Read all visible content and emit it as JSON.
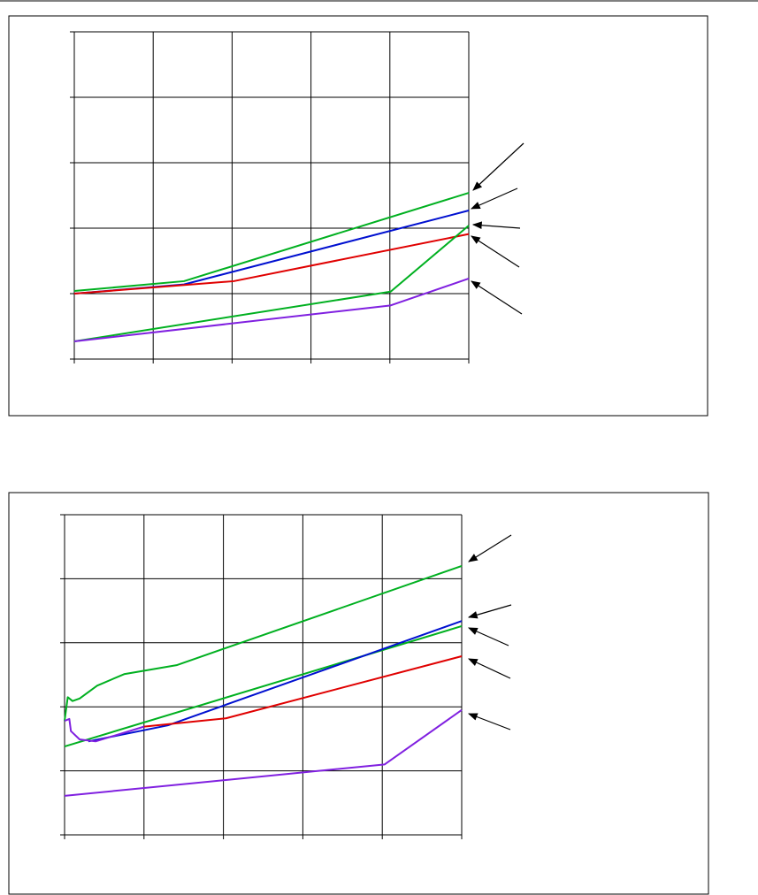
{
  "chart_data": [
    {
      "type": "line",
      "xlim": [
        0,
        5
      ],
      "ylim": [
        0,
        5
      ],
      "xticks": [
        0,
        1,
        2,
        3,
        4,
        5
      ],
      "yticks": [
        0,
        1,
        2,
        3,
        4,
        5
      ],
      "grid": true,
      "series": [
        {
          "color": "#00b020",
          "x": [
            0,
            1.39,
            5
          ],
          "values": [
            1.04,
            1.19,
            2.54
          ]
        },
        {
          "color": "#0010d0",
          "x": [
            0,
            1.39,
            5
          ],
          "values": [
            1.0,
            1.14,
            2.27
          ]
        },
        {
          "color": "#e00000",
          "x": [
            0,
            2.02,
            5
          ],
          "values": [
            1.0,
            1.19,
            1.91
          ]
        },
        {
          "color": "#00b020",
          "x": [
            0,
            4.01,
            5
          ],
          "values": [
            0.27,
            1.03,
            2.04
          ]
        },
        {
          "color": "#8020e0",
          "x": [
            0,
            4.01,
            5
          ],
          "values": [
            0.27,
            0.82,
            1.23
          ]
        }
      ]
    },
    {
      "type": "line",
      "xlim": [
        0,
        5
      ],
      "ylim": [
        0,
        5
      ],
      "xticks": [
        0,
        1,
        2,
        3,
        4,
        5
      ],
      "yticks": [
        0,
        1,
        2,
        3,
        4,
        5
      ],
      "grid": true,
      "series": [
        {
          "color": "#00b020",
          "x": [
            0,
            0.04,
            0.1,
            0.19,
            0.41,
            0.75,
            1.41,
            5
          ],
          "values": [
            1.78,
            2.15,
            2.09,
            2.13,
            2.33,
            2.51,
            2.65,
            4.2
          ]
        },
        {
          "color": "#00b020",
          "x": [
            0,
            5
          ],
          "values": [
            1.38,
            3.26
          ]
        },
        {
          "color": "#0010d0",
          "x": [
            0.3,
            1.3,
            5
          ],
          "values": [
            1.46,
            1.71,
            3.34
          ]
        },
        {
          "color": "#e00000",
          "x": [
            1.0,
            2.03,
            5
          ],
          "values": [
            1.69,
            1.82,
            2.79
          ]
        },
        {
          "color": "#8020e0",
          "x": [
            0,
            0.06,
            0.08,
            0.19,
            0.39,
            1.0
          ],
          "values": [
            1.78,
            1.81,
            1.62,
            1.49,
            1.46,
            1.69
          ]
        },
        {
          "color": "#8020e0",
          "x": [
            0,
            4.03,
            5
          ],
          "values": [
            0.61,
            1.1,
            1.95
          ]
        }
      ]
    }
  ]
}
